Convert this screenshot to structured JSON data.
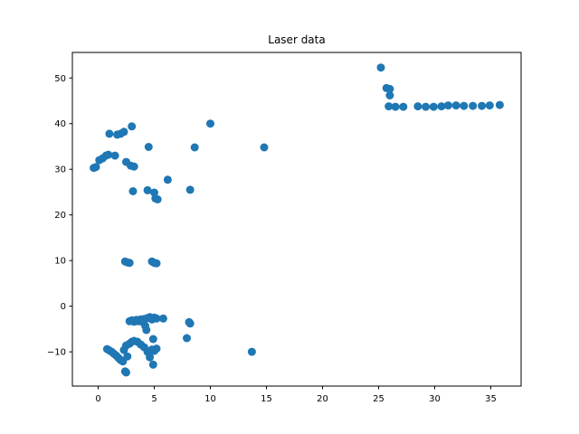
{
  "chart_data": {
    "type": "scatter",
    "title": "Laser data",
    "xlabel": "",
    "ylabel": "",
    "xlim": [
      -2.3,
      37.7
    ],
    "ylim": [
      -17.5,
      55.6
    ],
    "xticks": [
      0,
      5,
      10,
      15,
      20,
      25,
      30,
      35
    ],
    "yticks": [
      -10,
      0,
      10,
      20,
      30,
      40,
      50
    ],
    "grid": false,
    "color": "#1f77b4",
    "points": [
      [
        -0.4,
        30.3
      ],
      [
        -0.2,
        30.5
      ],
      [
        0.1,
        32.0
      ],
      [
        0.4,
        32.4
      ],
      [
        0.7,
        33.0
      ],
      [
        0.9,
        33.2
      ],
      [
        1.0,
        37.8
      ],
      [
        1.5,
        33.0
      ],
      [
        1.7,
        37.6
      ],
      [
        2.0,
        37.8
      ],
      [
        2.3,
        38.2
      ],
      [
        2.5,
        31.6
      ],
      [
        2.9,
        30.8
      ],
      [
        3.2,
        30.6
      ],
      [
        3.0,
        39.4
      ],
      [
        3.1,
        25.2
      ],
      [
        4.4,
        25.4
      ],
      [
        4.5,
        34.9
      ],
      [
        5.0,
        24.9
      ],
      [
        5.1,
        23.6
      ],
      [
        5.3,
        23.4
      ],
      [
        6.2,
        27.7
      ],
      [
        8.2,
        25.5
      ],
      [
        8.6,
        34.8
      ],
      [
        10.0,
        40.0
      ],
      [
        14.8,
        34.8
      ],
      [
        2.4,
        9.8
      ],
      [
        2.6,
        9.6
      ],
      [
        2.8,
        9.5
      ],
      [
        4.8,
        9.8
      ],
      [
        5.0,
        9.5
      ],
      [
        5.2,
        9.4
      ],
      [
        2.8,
        -3.3
      ],
      [
        3.0,
        -3.1
      ],
      [
        3.2,
        -3.4
      ],
      [
        3.4,
        -3.0
      ],
      [
        3.6,
        -3.3
      ],
      [
        3.8,
        -2.9
      ],
      [
        4.0,
        -3.5
      ],
      [
        4.1,
        -2.8
      ],
      [
        4.2,
        -4.3
      ],
      [
        4.3,
        -5.2
      ],
      [
        4.4,
        -2.6
      ],
      [
        4.6,
        -2.4
      ],
      [
        4.8,
        -2.9
      ],
      [
        5.0,
        -2.5
      ],
      [
        5.2,
        -2.7
      ],
      [
        5.8,
        -2.7
      ],
      [
        8.1,
        -3.5
      ],
      [
        8.2,
        -3.8
      ],
      [
        4.9,
        -7.2
      ],
      [
        7.9,
        -7.0
      ],
      [
        0.8,
        -9.4
      ],
      [
        1.0,
        -9.7
      ],
      [
        1.2,
        -10.0
      ],
      [
        1.4,
        -10.4
      ],
      [
        1.6,
        -10.8
      ],
      [
        1.8,
        -11.3
      ],
      [
        2.0,
        -11.8
      ],
      [
        2.2,
        -12.1
      ],
      [
        2.3,
        -9.6
      ],
      [
        2.5,
        -8.6
      ],
      [
        2.6,
        -11.0
      ],
      [
        2.8,
        -8.2
      ],
      [
        3.0,
        -7.8
      ],
      [
        3.2,
        -7.6
      ],
      [
        3.5,
        -7.8
      ],
      [
        3.8,
        -8.4
      ],
      [
        4.1,
        -9.0
      ],
      [
        4.4,
        -10.0
      ],
      [
        4.6,
        -11.2
      ],
      [
        4.8,
        -9.5
      ],
      [
        5.0,
        -9.8
      ],
      [
        5.2,
        -9.3
      ],
      [
        4.9,
        -12.8
      ],
      [
        2.4,
        -14.3
      ],
      [
        2.5,
        -14.5
      ],
      [
        13.7,
        -10.0
      ],
      [
        25.2,
        52.3
      ],
      [
        25.7,
        47.8
      ],
      [
        26.0,
        47.6
      ],
      [
        26.0,
        46.2
      ],
      [
        25.9,
        43.8
      ],
      [
        26.5,
        43.7
      ],
      [
        27.2,
        43.7
      ],
      [
        28.5,
        43.8
      ],
      [
        29.2,
        43.7
      ],
      [
        29.9,
        43.7
      ],
      [
        30.6,
        43.8
      ],
      [
        31.2,
        44.0
      ],
      [
        31.9,
        44.0
      ],
      [
        32.6,
        43.9
      ],
      [
        33.4,
        43.9
      ],
      [
        34.2,
        43.9
      ],
      [
        34.9,
        44.0
      ],
      [
        35.8,
        44.1
      ]
    ]
  }
}
